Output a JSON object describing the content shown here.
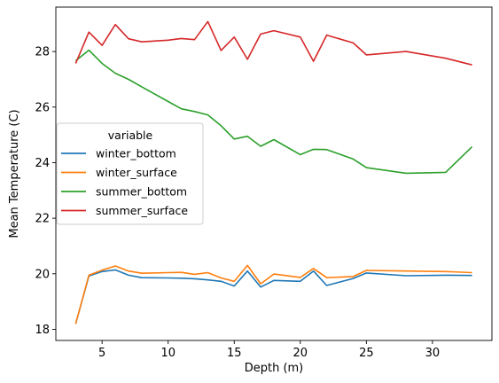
{
  "chart_data": {
    "type": "line",
    "xlabel": "Depth (m)",
    "ylabel": "Mean Temperature (C)",
    "xlim": [
      1.5,
      34.5
    ],
    "ylim": [
      17.6,
      29.6
    ],
    "xticks": [
      5,
      10,
      15,
      20,
      25,
      30
    ],
    "yticks": [
      18,
      20,
      22,
      24,
      26,
      28
    ],
    "grid": false,
    "legend": {
      "title": "variable",
      "placement": "center-left"
    },
    "x": [
      3,
      4,
      5,
      6,
      7,
      8,
      10,
      11,
      12,
      13,
      14,
      15,
      16,
      17,
      18,
      20,
      21,
      22,
      24,
      25,
      28,
      31,
      33
    ],
    "series": [
      {
        "name": "winter_bottom",
        "color": "#1f77b4",
        "values": [
          18.2,
          19.92,
          20.08,
          20.14,
          19.95,
          19.86,
          19.85,
          19.84,
          19.82,
          19.78,
          19.73,
          19.56,
          20.1,
          19.52,
          19.76,
          19.73,
          20.1,
          19.58,
          19.83,
          20.03,
          19.93,
          19.95,
          19.94
        ]
      },
      {
        "name": "winter_surface",
        "color": "#ff7f0e",
        "values": [
          18.2,
          19.95,
          20.13,
          20.28,
          20.1,
          20.02,
          20.04,
          20.05,
          19.98,
          20.04,
          19.85,
          19.73,
          20.3,
          19.64,
          19.99,
          19.87,
          20.19,
          19.86,
          19.9,
          20.12,
          20.1,
          20.08,
          20.04
        ]
      },
      {
        "name": "summer_bottom",
        "color": "#2ca02c",
        "values": [
          27.67,
          28.05,
          27.57,
          27.22,
          27.0,
          26.73,
          26.2,
          25.94,
          25.84,
          25.72,
          25.33,
          24.85,
          24.95,
          24.59,
          24.83,
          24.29,
          24.48,
          24.47,
          24.13,
          23.82,
          23.62,
          23.65,
          24.57
        ]
      },
      {
        "name": "summer_surface",
        "color": "#d62728",
        "values": [
          27.57,
          28.7,
          28.22,
          28.97,
          28.46,
          28.35,
          28.41,
          28.47,
          28.43,
          29.08,
          28.04,
          28.52,
          27.72,
          28.63,
          28.75,
          28.52,
          27.65,
          28.59,
          28.31,
          27.88,
          28.0,
          27.76,
          27.52
        ]
      }
    ]
  }
}
